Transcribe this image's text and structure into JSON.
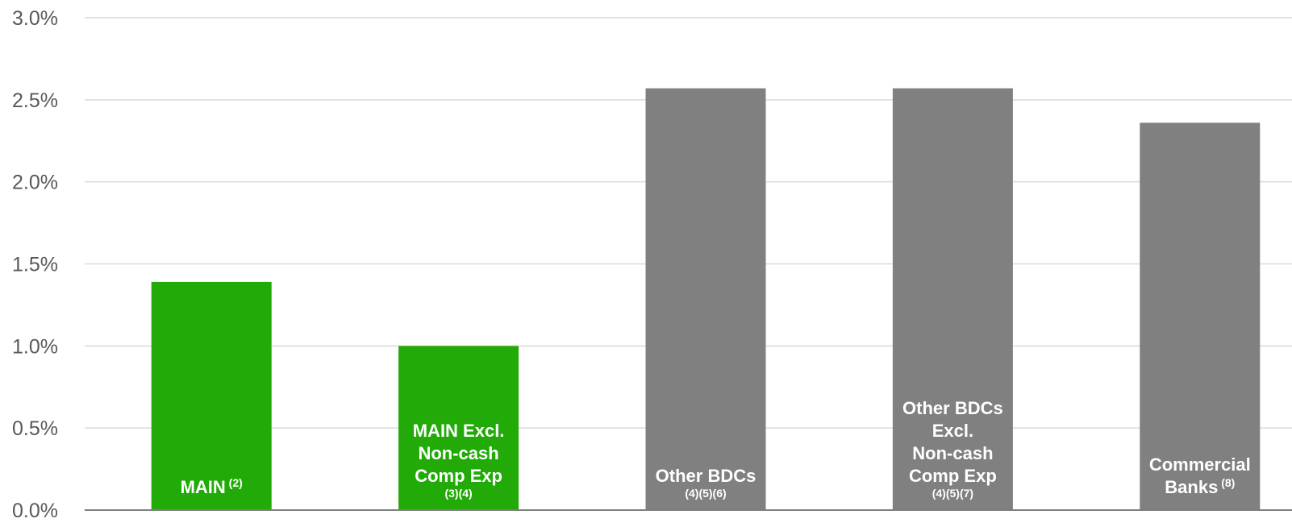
{
  "chart_data": {
    "type": "bar",
    "title": "",
    "xlabel": "",
    "ylabel": "",
    "ylim": [
      0,
      3.0
    ],
    "y_ticks": [
      "0.0%",
      "0.5%",
      "1.0%",
      "1.5%",
      "2.0%",
      "2.5%",
      "3.0%"
    ],
    "grid": true,
    "categories": [
      {
        "lines": [
          "MAIN"
        ],
        "note": "(2)",
        "note_inline": true
      },
      {
        "lines": [
          "MAIN Excl.",
          "Non-cash",
          "Comp Exp"
        ],
        "note": "(3)(4)",
        "note_inline": false
      },
      {
        "lines": [
          "Other BDCs"
        ],
        "note": "(4)(5)(6)",
        "note_inline": false
      },
      {
        "lines": [
          "Other BDCs",
          "Excl.",
          "Non-cash",
          "Comp Exp"
        ],
        "note": "(4)(5)(7)",
        "note_inline": false
      },
      {
        "lines": [
          "Commercial",
          "Banks"
        ],
        "note": "(8)",
        "note_inline": true
      }
    ],
    "values": [
      1.39,
      1.0,
      2.57,
      2.57,
      2.36
    ],
    "colors": [
      "#22aa08",
      "#22aa08",
      "#808080",
      "#808080",
      "#808080"
    ],
    "grid_color": "#d9d9d9",
    "axis_color": "#7f7f7f"
  }
}
